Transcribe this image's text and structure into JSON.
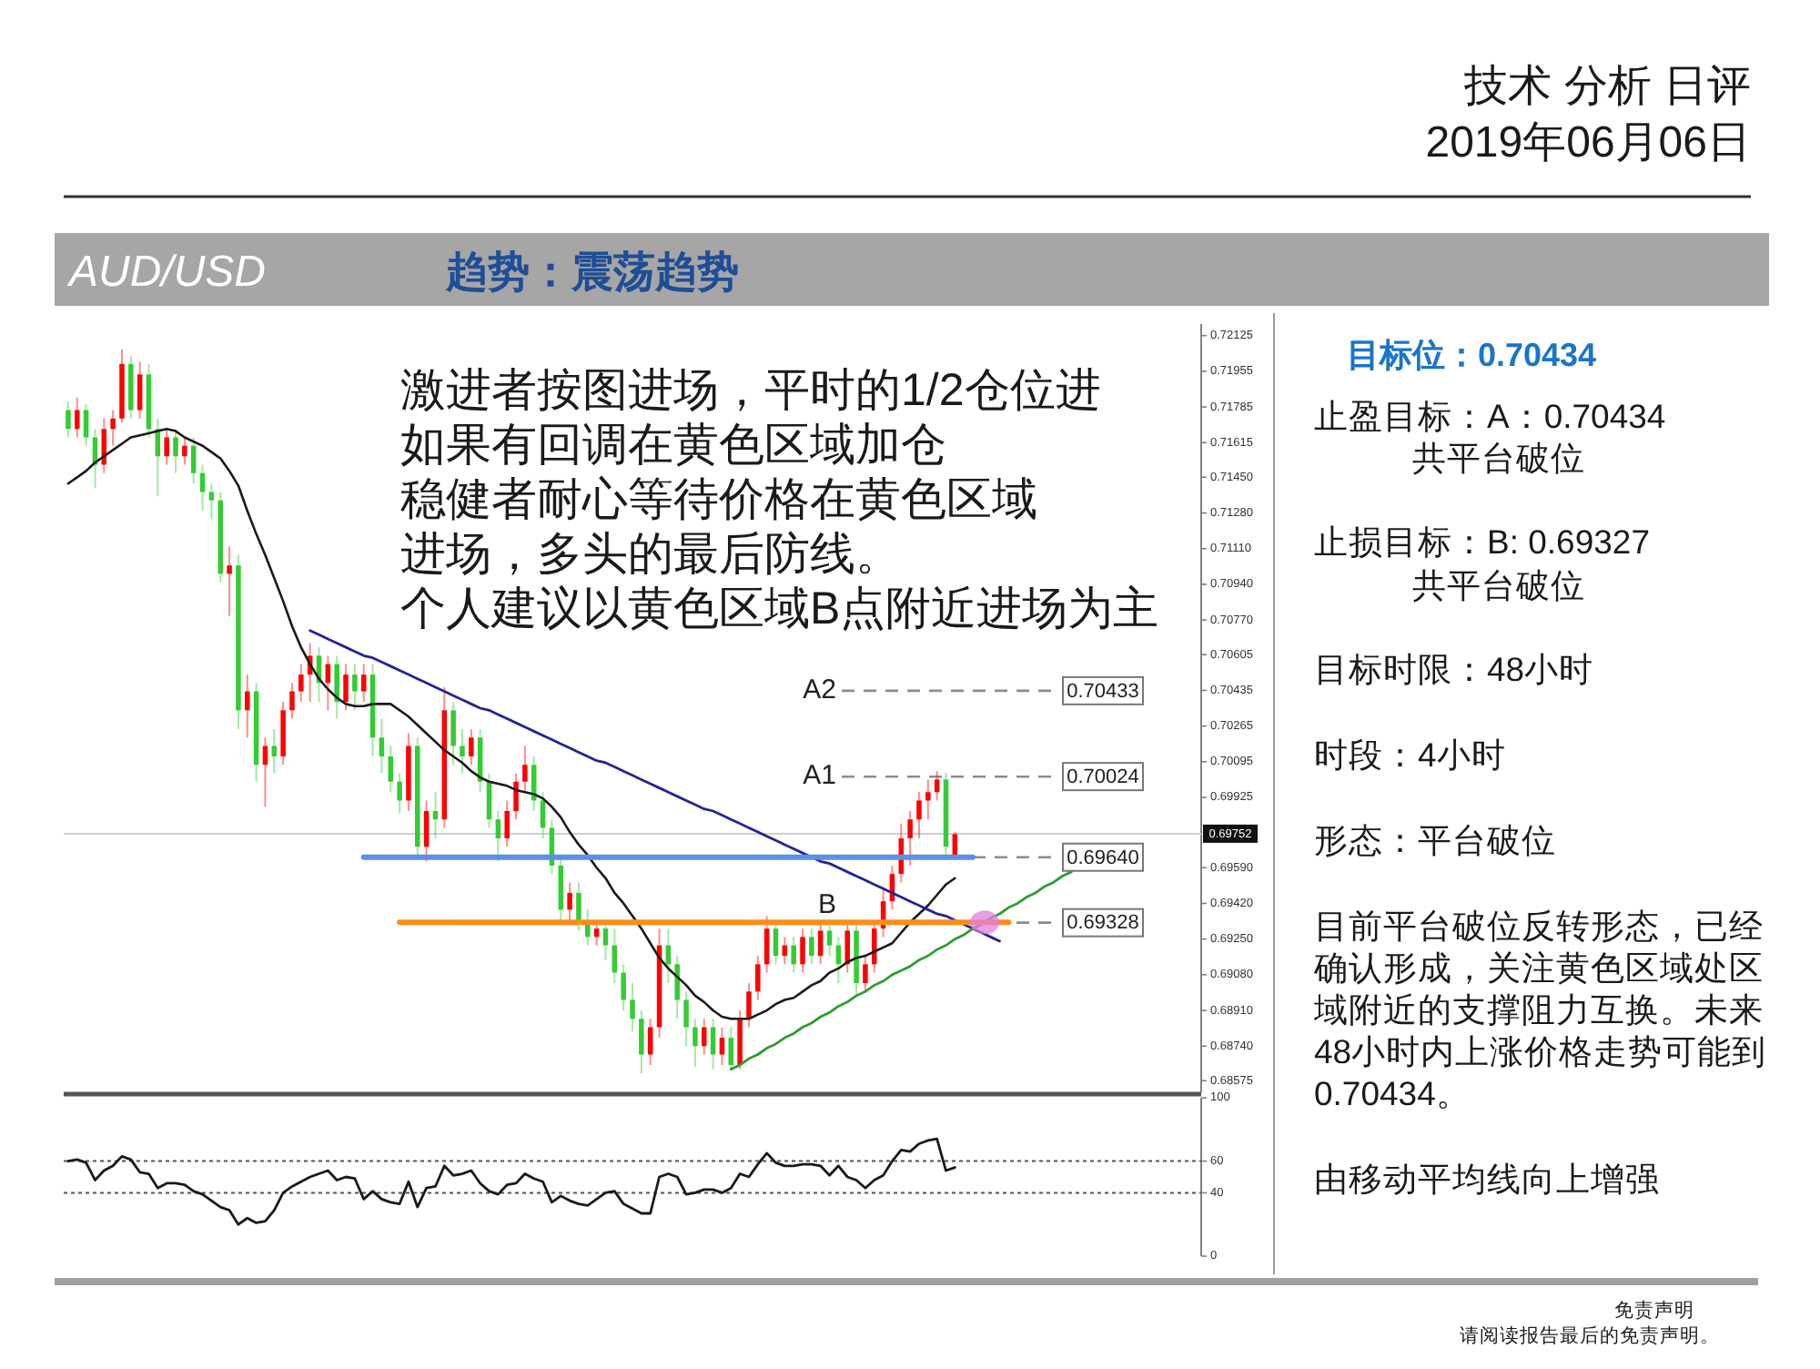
{
  "chart_data": [
    {
      "type": "candlestick",
      "title": "AUD/USD",
      "subtitle": "趋势：震荡趋势",
      "categories": [
        null,
        null,
        null,
        null,
        null,
        null,
        null,
        null,
        null,
        null,
        null,
        null,
        null,
        null,
        null,
        null,
        null,
        null,
        null,
        null,
        null,
        null,
        null,
        null,
        null,
        null,
        null,
        null,
        null,
        null,
        null,
        null,
        null,
        null,
        null,
        null,
        null,
        null,
        null,
        null,
        null,
        null,
        null,
        null,
        null,
        null,
        null,
        null,
        null,
        null,
        null,
        null,
        null,
        null,
        null,
        null,
        null,
        null,
        null,
        null,
        null,
        null,
        null,
        null,
        null,
        null,
        null,
        null,
        null,
        null,
        null,
        null,
        null,
        null,
        null,
        null,
        null,
        null,
        null,
        null,
        null,
        null,
        null,
        null,
        null,
        null,
        null,
        null,
        null,
        null,
        null,
        null,
        null,
        null,
        null,
        null,
        null,
        null,
        null,
        null,
        null,
        null,
        null,
        null,
        null,
        null,
        null,
        null,
        null,
        null,
        null,
        null,
        null,
        null,
        null,
        null,
        null,
        null,
        null,
        null,
        null,
        null,
        null,
        null,
        null,
        null,
        null
      ],
      "ohlc": [
        [
          0.7177,
          0.7181,
          0.7164,
          0.7168
        ],
        [
          0.7168,
          0.7183,
          0.7164,
          0.7177
        ],
        [
          0.7177,
          0.718,
          0.716,
          0.7164
        ],
        [
          0.7164,
          0.7168,
          0.714,
          0.7151
        ],
        [
          0.7151,
          0.7173,
          0.7147,
          0.7168
        ],
        [
          0.7168,
          0.7177,
          0.716,
          0.7173
        ],
        [
          0.7173,
          0.7206,
          0.7171,
          0.7199
        ],
        [
          0.7199,
          0.7203,
          0.7173,
          0.7177
        ],
        [
          0.7177,
          0.72,
          0.7173,
          0.7194
        ],
        [
          0.7194,
          0.7199,
          0.7164,
          0.7168
        ],
        [
          0.7168,
          0.7173,
          0.7136,
          0.7155
        ],
        [
          0.7155,
          0.7168,
          0.7151,
          0.7164
        ],
        [
          0.7164,
          0.7168,
          0.7147,
          0.7155
        ],
        [
          0.7155,
          0.7164,
          0.7151,
          0.716
        ],
        [
          0.716,
          0.7164,
          0.7142,
          0.7147
        ],
        [
          0.7147,
          0.7151,
          0.7129,
          0.7138
        ],
        [
          0.7138,
          0.7142,
          0.7125,
          0.7134
        ],
        [
          0.7134,
          0.7138,
          0.7095,
          0.7099
        ],
        [
          0.7099,
          0.7112,
          0.7079,
          0.7103
        ],
        [
          0.7103,
          0.7108,
          0.7025,
          0.7034
        ],
        [
          0.7034,
          0.7051,
          0.7021,
          0.7043
        ],
        [
          0.7043,
          0.7047,
          0.7,
          0.7008
        ],
        [
          0.7008,
          0.7021,
          0.6988,
          0.7017
        ],
        [
          0.7017,
          0.7025,
          0.7004,
          0.7012
        ],
        [
          0.7012,
          0.7038,
          0.7008,
          0.7034
        ],
        [
          0.7034,
          0.7047,
          0.703,
          0.7043
        ],
        [
          0.7043,
          0.7056,
          0.7038,
          0.7051
        ],
        [
          0.7051,
          0.7066,
          0.7038,
          0.706
        ],
        [
          0.706,
          0.7064,
          0.7038,
          0.7047
        ],
        [
          0.7047,
          0.706,
          0.7034,
          0.7056
        ],
        [
          0.7056,
          0.706,
          0.703,
          0.7038
        ],
        [
          0.7038,
          0.7056,
          0.7034,
          0.7051
        ],
        [
          0.7051,
          0.7056,
          0.7034,
          0.7043
        ],
        [
          0.7043,
          0.7056,
          0.7038,
          0.7051
        ],
        [
          0.7051,
          0.7056,
          0.7012,
          0.7021
        ],
        [
          0.7021,
          0.703,
          0.7004,
          0.7012
        ],
        [
          0.7012,
          0.7017,
          0.6995,
          0.7
        ],
        [
          0.7,
          0.7004,
          0.6985,
          0.6991
        ],
        [
          0.6991,
          0.7023,
          0.6986,
          0.7017
        ],
        [
          0.7017,
          0.7021,
          0.6965,
          0.6969
        ],
        [
          0.6969,
          0.6991,
          0.6962,
          0.6986
        ],
        [
          0.6986,
          0.6995,
          0.6973,
          0.6982
        ],
        [
          0.6982,
          0.7045,
          0.6978,
          0.7034
        ],
        [
          0.7034,
          0.7038,
          0.7008,
          0.7017
        ],
        [
          0.7017,
          0.7025,
          0.7004,
          0.7012
        ],
        [
          0.7012,
          0.7025,
          0.7008,
          0.7021
        ],
        [
          0.7021,
          0.7025,
          0.6995,
          0.7
        ],
        [
          0.7,
          0.7004,
          0.6978,
          0.6982
        ],
        [
          0.6982,
          0.6986,
          0.6962,
          0.6973
        ],
        [
          0.6973,
          0.6991,
          0.6969,
          0.6986
        ],
        [
          0.6986,
          0.7004,
          0.6982,
          0.7
        ],
        [
          0.7,
          0.7017,
          0.6995,
          0.7008
        ],
        [
          0.7008,
          0.7012,
          0.6986,
          0.6991
        ],
        [
          0.6991,
          0.6995,
          0.6973,
          0.6978
        ],
        [
          0.6978,
          0.6982,
          0.6956,
          0.696
        ],
        [
          0.696,
          0.6965,
          0.6933,
          0.6939
        ],
        [
          0.6939,
          0.6952,
          0.6934,
          0.6947
        ],
        [
          0.6947,
          0.6952,
          0.6929,
          0.6934
        ],
        [
          0.6934,
          0.6939,
          0.6922,
          0.6926
        ],
        [
          0.6926,
          0.6934,
          0.6922,
          0.693
        ],
        [
          0.693,
          0.6934,
          0.6915,
          0.6922
        ],
        [
          0.6922,
          0.693,
          0.6904,
          0.6909
        ],
        [
          0.6909,
          0.6913,
          0.6891,
          0.6896
        ],
        [
          0.6896,
          0.6904,
          0.6881,
          0.6887
        ],
        [
          0.6887,
          0.6891,
          0.6861,
          0.687
        ],
        [
          0.687,
          0.6887,
          0.6865,
          0.6883
        ],
        [
          0.6883,
          0.693,
          0.6878,
          0.6922
        ],
        [
          0.6922,
          0.693,
          0.6904,
          0.6913
        ],
        [
          0.6913,
          0.6917,
          0.6887,
          0.6896
        ],
        [
          0.6896,
          0.69,
          0.6874,
          0.6883
        ],
        [
          0.6883,
          0.6887,
          0.6864,
          0.6874
        ],
        [
          0.6874,
          0.6887,
          0.687,
          0.6883
        ],
        [
          0.6883,
          0.6887,
          0.6863,
          0.687
        ],
        [
          0.687,
          0.6883,
          0.6865,
          0.6878
        ],
        [
          0.6878,
          0.6883,
          0.6863,
          0.6865
        ],
        [
          0.6865,
          0.6891,
          0.6863,
          0.6887
        ],
        [
          0.6887,
          0.6904,
          0.6883,
          0.69
        ],
        [
          0.69,
          0.6917,
          0.6896,
          0.6913
        ],
        [
          0.6913,
          0.6936,
          0.6909,
          0.693
        ],
        [
          0.693,
          0.6934,
          0.6913,
          0.6917
        ],
        [
          0.6917,
          0.6926,
          0.6913,
          0.6922
        ],
        [
          0.6922,
          0.6926,
          0.6909,
          0.6913
        ],
        [
          0.6913,
          0.693,
          0.6909,
          0.6926
        ],
        [
          0.6926,
          0.693,
          0.6913,
          0.6917
        ],
        [
          0.6917,
          0.6932,
          0.6913,
          0.6929
        ],
        [
          0.6929,
          0.6932,
          0.6917,
          0.6922
        ],
        [
          0.6922,
          0.6926,
          0.6904,
          0.6913
        ],
        [
          0.6913,
          0.6932,
          0.6909,
          0.6929
        ],
        [
          0.6929,
          0.6932,
          0.6898,
          0.6904
        ],
        [
          0.6904,
          0.6917,
          0.69,
          0.6913
        ],
        [
          0.6913,
          0.6934,
          0.6909,
          0.693
        ],
        [
          0.693,
          0.6949,
          0.6926,
          0.6943
        ],
        [
          0.6943,
          0.696,
          0.6939,
          0.6956
        ],
        [
          0.6956,
          0.698,
          0.6952,
          0.6973
        ],
        [
          0.6973,
          0.6986,
          0.696,
          0.6982
        ],
        [
          0.6982,
          0.6995,
          0.6973,
          0.6991
        ],
        [
          0.6991,
          0.7001,
          0.6982,
          0.6995
        ],
        [
          0.6995,
          0.7005,
          0.6991,
          0.7001
        ],
        [
          0.7001,
          0.7004,
          0.6965,
          0.6969
        ],
        [
          0.6965,
          0.6976,
          0.6963,
          0.6975
        ],
        null,
        null,
        null,
        null,
        null,
        null,
        null,
        null,
        null,
        null,
        null,
        null,
        null,
        null,
        null,
        null,
        null,
        null,
        null,
        null,
        null,
        null,
        null,
        null,
        null,
        null,
        null
      ],
      "colors": [
        "#33cc33",
        "#ff0000",
        "#33cc33",
        "#33cc33",
        "#ff0000",
        "#ff0000",
        "#ff0000",
        "#33cc33",
        "#ff0000",
        "#33cc33",
        "#33cc33",
        "#ff0000",
        "#33cc33",
        "#ff0000",
        "#33cc33",
        "#33cc33",
        "#33cc33",
        "#33cc33",
        "#ff0000",
        "#33cc33",
        "#ff0000",
        "#33cc33",
        "#ff0000",
        "#33cc33",
        "#ff0000",
        "#ff0000",
        "#ff0000",
        "#ff0000",
        "#33cc33",
        "#ff0000",
        "#33cc33",
        "#ff0000",
        "#33cc33",
        "#ff0000",
        "#33cc33",
        "#33cc33",
        "#33cc33",
        "#33cc33",
        "#ff0000",
        "#33cc33",
        "#ff0000",
        "#33cc33",
        "#ff0000",
        "#33cc33",
        "#33cc33",
        "#ff0000",
        "#33cc33",
        "#33cc33",
        "#33cc33",
        "#ff0000",
        "#ff0000",
        "#ff0000",
        "#33cc33",
        "#33cc33",
        "#33cc33",
        "#33cc33",
        "#ff0000",
        "#33cc33",
        "#33cc33",
        "#ff0000",
        "#33cc33",
        "#33cc33",
        "#33cc33",
        "#33cc33",
        "#33cc33",
        "#ff0000",
        "#ff0000",
        "#33cc33",
        "#33cc33",
        "#33cc33",
        "#33cc33",
        "#ff0000",
        "#33cc33",
        "#ff0000",
        "#33cc33",
        "#ff0000",
        "#ff0000",
        "#ff0000",
        "#ff0000",
        "#33cc33",
        "#ff0000",
        "#33cc33",
        "#ff0000",
        "#33cc33",
        "#ff0000",
        "#33cc33",
        "#33cc33",
        "#ff0000",
        "#33cc33",
        "#ff0000",
        "#ff0000",
        "#ff0000",
        "#ff0000",
        "#ff0000",
        "#ff0000",
        "#ff0000",
        "#ff0000",
        "#ff0000",
        "#33cc33",
        "#ff0000",
        null,
        null,
        null,
        null,
        null,
        null,
        null,
        null,
        null,
        null,
        null,
        null,
        null,
        null,
        null,
        null,
        null,
        null,
        null,
        null,
        null,
        null,
        null,
        null,
        null,
        null,
        null
      ],
      "series": [
        {
          "type": "line",
          "color": "#1a1a1a",
          "values": [
            0.7142,
            0.7145,
            0.7148,
            0.7152,
            0.7155,
            0.7158,
            0.7161,
            0.7164,
            0.7165,
            0.7166,
            0.7167,
            0.7168,
            0.7167,
            0.7164,
            0.7162,
            0.716,
            0.7157,
            0.7154,
            0.7148,
            0.7141,
            0.7129,
            0.7118,
            0.7108,
            0.7097,
            0.7086,
            0.7074,
            0.7064,
            0.7056,
            0.7049,
            0.7044,
            0.704,
            0.7037,
            0.7036,
            0.7036,
            0.7037,
            0.7037,
            0.7037,
            0.7034,
            0.7031,
            0.7027,
            0.7023,
            0.7019,
            0.7015,
            0.7012,
            0.7009,
            0.7005,
            0.7002,
            0.7,
            0.6999,
            0.6998,
            0.6996,
            0.6995,
            0.6994,
            0.6992,
            0.6988,
            0.6983,
            0.6976,
            0.697,
            0.6965,
            0.6959,
            0.6954,
            0.6947,
            0.6942,
            0.6936,
            0.693,
            0.6923,
            0.6916,
            0.6911,
            0.6907,
            0.6903,
            0.6898,
            0.6895,
            0.6891,
            0.6888,
            0.6887,
            0.6887,
            0.6887,
            0.6889,
            0.6891,
            0.6894,
            0.6896,
            0.6897,
            0.69,
            0.6903,
            0.6905,
            0.6909,
            0.6911,
            0.6914,
            0.6916,
            0.6917,
            0.6919,
            0.6921,
            0.6923,
            0.6928,
            0.6933,
            0.6937,
            0.6941,
            0.6946,
            0.6951,
            0.6954,
            null,
            null,
            null,
            null,
            null,
            null,
            null,
            null,
            null,
            null,
            null,
            null,
            null,
            null,
            null,
            null,
            null,
            null,
            null,
            null,
            null,
            null,
            null,
            null,
            null,
            null,
            null
          ]
        },
        {
          "type": "line",
          "color": "#23239a",
          "values": [
            null,
            null,
            null,
            null,
            null,
            null,
            null,
            null,
            null,
            null,
            null,
            null,
            null,
            null,
            null,
            null,
            null,
            null,
            null,
            null,
            null,
            null,
            null,
            null,
            null,
            null,
            null,
            0.7072,
            0.707,
            0.7068,
            0.7066,
            0.7064,
            0.7062,
            0.706,
            0.7059,
            0.7057,
            0.7055,
            0.7053,
            0.7051,
            0.7049,
            0.7047,
            0.7045,
            0.7043,
            0.7041,
            0.7039,
            0.7037,
            0.7035,
            0.7034,
            0.7032,
            0.703,
            0.7028,
            0.7026,
            0.7024,
            0.7022,
            0.702,
            0.7018,
            0.7016,
            0.7014,
            0.7012,
            0.701,
            0.7009,
            0.7007,
            0.7005,
            0.7003,
            0.7001,
            0.6999,
            0.6997,
            0.6995,
            0.6993,
            0.6991,
            0.6989,
            0.6987,
            0.6986,
            0.6984,
            0.6982,
            0.698,
            0.6978,
            0.6976,
            0.6974,
            0.6972,
            0.697,
            0.6968,
            0.6966,
            0.6964,
            0.6962,
            0.6961,
            0.6959,
            0.6957,
            0.6955,
            0.6953,
            0.6951,
            0.6949,
            0.6947,
            0.6945,
            0.6943,
            0.6941,
            0.6939,
            0.6937,
            0.6936,
            0.6934,
            0.6932,
            0.693,
            0.6928,
            0.6926,
            0.6924,
            null,
            null,
            null,
            null,
            null,
            null,
            null,
            null,
            null,
            null,
            null,
            null,
            null,
            null,
            null,
            null,
            null,
            null,
            null,
            null,
            null,
            null
          ]
        },
        {
          "type": "line",
          "color": "#2e9e2e",
          "values": [
            null,
            null,
            null,
            null,
            null,
            null,
            null,
            null,
            null,
            null,
            null,
            null,
            null,
            null,
            null,
            null,
            null,
            null,
            null,
            null,
            null,
            null,
            null,
            null,
            null,
            null,
            null,
            null,
            null,
            null,
            null,
            null,
            null,
            null,
            null,
            null,
            null,
            null,
            null,
            null,
            null,
            null,
            null,
            null,
            null,
            null,
            null,
            null,
            null,
            null,
            null,
            null,
            null,
            null,
            null,
            null,
            null,
            null,
            null,
            null,
            null,
            null,
            null,
            null,
            null,
            null,
            null,
            null,
            null,
            null,
            null,
            null,
            null,
            null,
            0.6863,
            0.6865,
            0.6868,
            0.687,
            0.6873,
            0.6875,
            0.6878,
            0.688,
            0.6883,
            0.6885,
            0.6888,
            0.689,
            0.6893,
            0.6895,
            0.6898,
            0.69,
            0.6903,
            0.6905,
            0.6908,
            0.691,
            0.6912,
            0.6915,
            0.6917,
            0.692,
            0.6922,
            0.6925,
            0.6927,
            0.693,
            0.6932,
            0.6935,
            0.6937,
            0.694,
            0.6942,
            0.6945,
            0.6947,
            0.695,
            0.6952,
            0.6955,
            0.6957,
            null,
            null,
            null,
            null,
            null,
            null,
            null,
            null,
            null,
            null,
            null,
            null,
            null,
            null
          ]
        },
        {
          "type": "line",
          "color": "#5b8fe8",
          "values": [
            null,
            null,
            null,
            null,
            null,
            null,
            null,
            null,
            null,
            null,
            null,
            null,
            null,
            null,
            null,
            null,
            null,
            null,
            null,
            null,
            null,
            null,
            null,
            null,
            null,
            null,
            null,
            null,
            null,
            null,
            null,
            null,
            null,
            0.6964,
            0.6964,
            0.6964,
            0.6964,
            0.6964,
            0.6964,
            0.6964,
            0.6964,
            0.6964,
            0.6964,
            0.6964,
            0.6964,
            0.6964,
            0.6964,
            0.6964,
            0.6964,
            0.6964,
            0.6964,
            0.6964,
            0.6964,
            0.6964,
            0.6964,
            0.6964,
            0.6964,
            0.6964,
            0.6964,
            0.6964,
            0.6964,
            0.6964,
            0.6964,
            0.6964,
            0.6964,
            0.6964,
            0.6964,
            0.6964,
            0.6964,
            0.6964,
            0.6964,
            0.6964,
            0.6964,
            0.6964,
            0.6964,
            0.6964,
            0.6964,
            0.6964,
            0.6964,
            0.6964,
            0.6964,
            0.6964,
            0.6964,
            0.6964,
            0.6964,
            0.6964,
            0.6964,
            0.6964,
            0.6964,
            0.6964,
            0.6964,
            0.6964,
            0.6964,
            0.6964,
            0.6964,
            0.6964,
            0.6964,
            0.6964,
            0.6964,
            0.6964,
            0.6964,
            0.6964,
            null,
            null,
            null,
            null,
            null,
            null,
            null,
            null,
            null,
            null,
            null,
            null,
            null,
            null,
            null,
            null,
            null,
            null,
            null,
            null,
            null,
            null,
            null,
            null,
            null
          ]
        },
        {
          "type": "line",
          "color": "#ff8c1a",
          "values": [
            null,
            null,
            null,
            null,
            null,
            null,
            null,
            null,
            null,
            null,
            null,
            null,
            null,
            null,
            null,
            null,
            null,
            null,
            null,
            null,
            null,
            null,
            null,
            null,
            null,
            null,
            null,
            null,
            null,
            null,
            null,
            null,
            null,
            null,
            null,
            null,
            null,
            0.6933,
            0.6933,
            0.6933,
            0.6933,
            0.6933,
            0.6933,
            0.6933,
            0.6933,
            0.6933,
            0.6933,
            0.6933,
            0.6933,
            0.6933,
            0.6933,
            0.6933,
            0.6933,
            0.6933,
            0.6933,
            0.6933,
            0.6933,
            0.6933,
            0.6933,
            0.6933,
            0.6933,
            0.6933,
            0.6933,
            0.6933,
            0.6933,
            0.6933,
            0.6933,
            0.6933,
            0.6933,
            0.6933,
            0.6933,
            0.6933,
            0.6933,
            0.6933,
            0.6933,
            0.6933,
            0.6933,
            0.6933,
            0.6933,
            0.6933,
            0.6933,
            0.6933,
            0.6933,
            0.6933,
            0.6933,
            0.6933,
            0.6933,
            0.6933,
            0.6933,
            0.6933,
            0.6933,
            0.6933,
            0.6933,
            0.6933,
            0.6933,
            0.6933,
            0.6933,
            0.6933,
            0.6933,
            0.6933,
            0.6933,
            0.6933,
            0.6933,
            0.6933,
            0.6933,
            0.6933,
            null,
            null,
            null,
            null,
            null,
            null,
            null,
            null,
            null,
            null,
            null,
            null,
            null,
            null,
            null,
            null,
            null,
            null,
            null,
            null,
            null
          ]
        }
      ],
      "ylim": [
        0.6852,
        0.7218
      ],
      "yticks": [
        0.72125,
        0.71955,
        0.71785,
        0.71615,
        {
          "value": 0.7145,
          "label": "0.71450"
        },
        {
          "value": 0.7128,
          "label": "0.71280"
        },
        {
          "value": 0.7111,
          "label": "0.71110"
        },
        {
          "value": 0.7094,
          "label": "0.70940"
        },
        {
          "value": 0.7077,
          "label": "0.70770"
        },
        0.70605,
        0.70435,
        0.70265,
        0.70095,
        0.69925,
        {
          "value": 0.6959,
          "label": "0.69590"
        },
        {
          "value": 0.6942,
          "label": "0.69420"
        },
        {
          "value": 0.6925,
          "label": "0.69250"
        },
        {
          "value": 0.6908,
          "label": "0.69080"
        },
        {
          "value": 0.6891,
          "label": "0.68910"
        },
        {
          "value": 0.6874,
          "label": "0.68740"
        },
        0.68575
      ],
      "tick_labels": "y",
      "ref_lines": [
        {
          "axis": "y",
          "value": 0.70433,
          "label": "0.70433",
          "color": "#8c8c8c",
          "line_style": "dashed"
        },
        {
          "axis": "y",
          "value": 0.70024,
          "label": "0.70024",
          "color": "#8c8c8c",
          "line_style": "dashed"
        },
        {
          "axis": "y",
          "value": 0.6964,
          "label": "0.69640",
          "color": "#8c8c8c",
          "line_style": "dashed"
        },
        {
          "axis": "y",
          "value": 0.69328,
          "label": "0.69328",
          "color": "#8c8c8c",
          "line_style": "dashed"
        },
        {
          "axis": "y",
          "value": 0.69752,
          "label": "0.69752",
          "color": "#cfcfcf",
          "line_style": "solid"
        }
      ],
      "annotations": [
        "激进者按图进场，平时的1/2仓位进",
        "如果有回调在黄色区域加仓",
        "稳健者耐心等待价格在黄色区域",
        "进场，多头的最后防线。",
        "个人建议以黄色区域B点附近进场为主",
        "A2",
        "A1",
        {
          "text": "B",
          "y": 0.6933
        }
      ]
    },
    {
      "type": "line",
      "categories": [
        null,
        null,
        null,
        null,
        null,
        null,
        null,
        null,
        null,
        null,
        null,
        null,
        null,
        null,
        null,
        null,
        null,
        null,
        null,
        null,
        null,
        null,
        null,
        null,
        null,
        null,
        null,
        null,
        null,
        null,
        null,
        null,
        null,
        null,
        null,
        null,
        null,
        null,
        null,
        null,
        null,
        null,
        null,
        null,
        null,
        null,
        null,
        null,
        null,
        null,
        null,
        null,
        null,
        null,
        null,
        null,
        null,
        null,
        null,
        null,
        null,
        null,
        null,
        null,
        null,
        null,
        null,
        null,
        null,
        null,
        null,
        null,
        null,
        null,
        null,
        null,
        null,
        null,
        null,
        null,
        null,
        null,
        null,
        null,
        null,
        null,
        null,
        null,
        null,
        null,
        null,
        null,
        null,
        null,
        null,
        null,
        null,
        null,
        null,
        null,
        null,
        null,
        null,
        null,
        null,
        null,
        null,
        null,
        null,
        null,
        null,
        null,
        null,
        null,
        null,
        null,
        null,
        null,
        null,
        null,
        null,
        null,
        null,
        null,
        null,
        null,
        null
      ],
      "series": [
        {
          "color": "#1a1a1a",
          "values": [
            60,
            61,
            59,
            48,
            54,
            57,
            63,
            61,
            53,
            52,
            43,
            46,
            46,
            45,
            41,
            39,
            35,
            31,
            29,
            20,
            24,
            21,
            22,
            29,
            40,
            44,
            47,
            50,
            52,
            54,
            48,
            50,
            49,
            36,
            41,
            36,
            34,
            33,
            47,
            31,
            43,
            44,
            57,
            51,
            52,
            54,
            46,
            41,
            39,
            45,
            46,
            52,
            49,
            47,
            34,
            38,
            35,
            33,
            32,
            36,
            40,
            41,
            33,
            30,
            27,
            27,
            50,
            52,
            50,
            39,
            40,
            42,
            42,
            40,
            43,
            52,
            50,
            58,
            65,
            59,
            57,
            57,
            58,
            58,
            57,
            51,
            57,
            50,
            48,
            43,
            48,
            51,
            60,
            67,
            66,
            71,
            73,
            74,
            54,
            56,
            null,
            null,
            null,
            null,
            null,
            null,
            null,
            null,
            null,
            null,
            null,
            null,
            null,
            null,
            null,
            null,
            null,
            null,
            null,
            null,
            null,
            null,
            null,
            null,
            null,
            null,
            null
          ]
        }
      ],
      "ylim": [
        0,
        100
      ],
      "yticks": [
        0,
        40,
        60,
        100
      ],
      "tick_labels": "y",
      "ref_lines": [
        {
          "axis": "y",
          "value": 60,
          "color": "#555555",
          "line_style": "dotted"
        },
        {
          "axis": "y",
          "value": 40,
          "color": "#555555",
          "line_style": "dotted"
        }
      ]
    },
    {
      "type": "other",
      "title": "目标位：0.70434",
      "annotations": [
        "技术 分析 日评",
        "2019年06月06日",
        "止盈目标：A：0.70434",
        "共平台破位",
        "止损目标：B: 0.69327",
        "共平台破位",
        "目标时限：48小时",
        "时段：4小时",
        "形态：平台破位",
        "目前平台破位反转形态，已经确认形成，关注黄色区域处区域附近的支撑阻力互换。未来48小时内上涨价格走势可能到0.70434。",
        "由移动平均线向上增强",
        "免责声明",
        "请阅读报告最后的免责声明。"
      ]
    }
  ]
}
